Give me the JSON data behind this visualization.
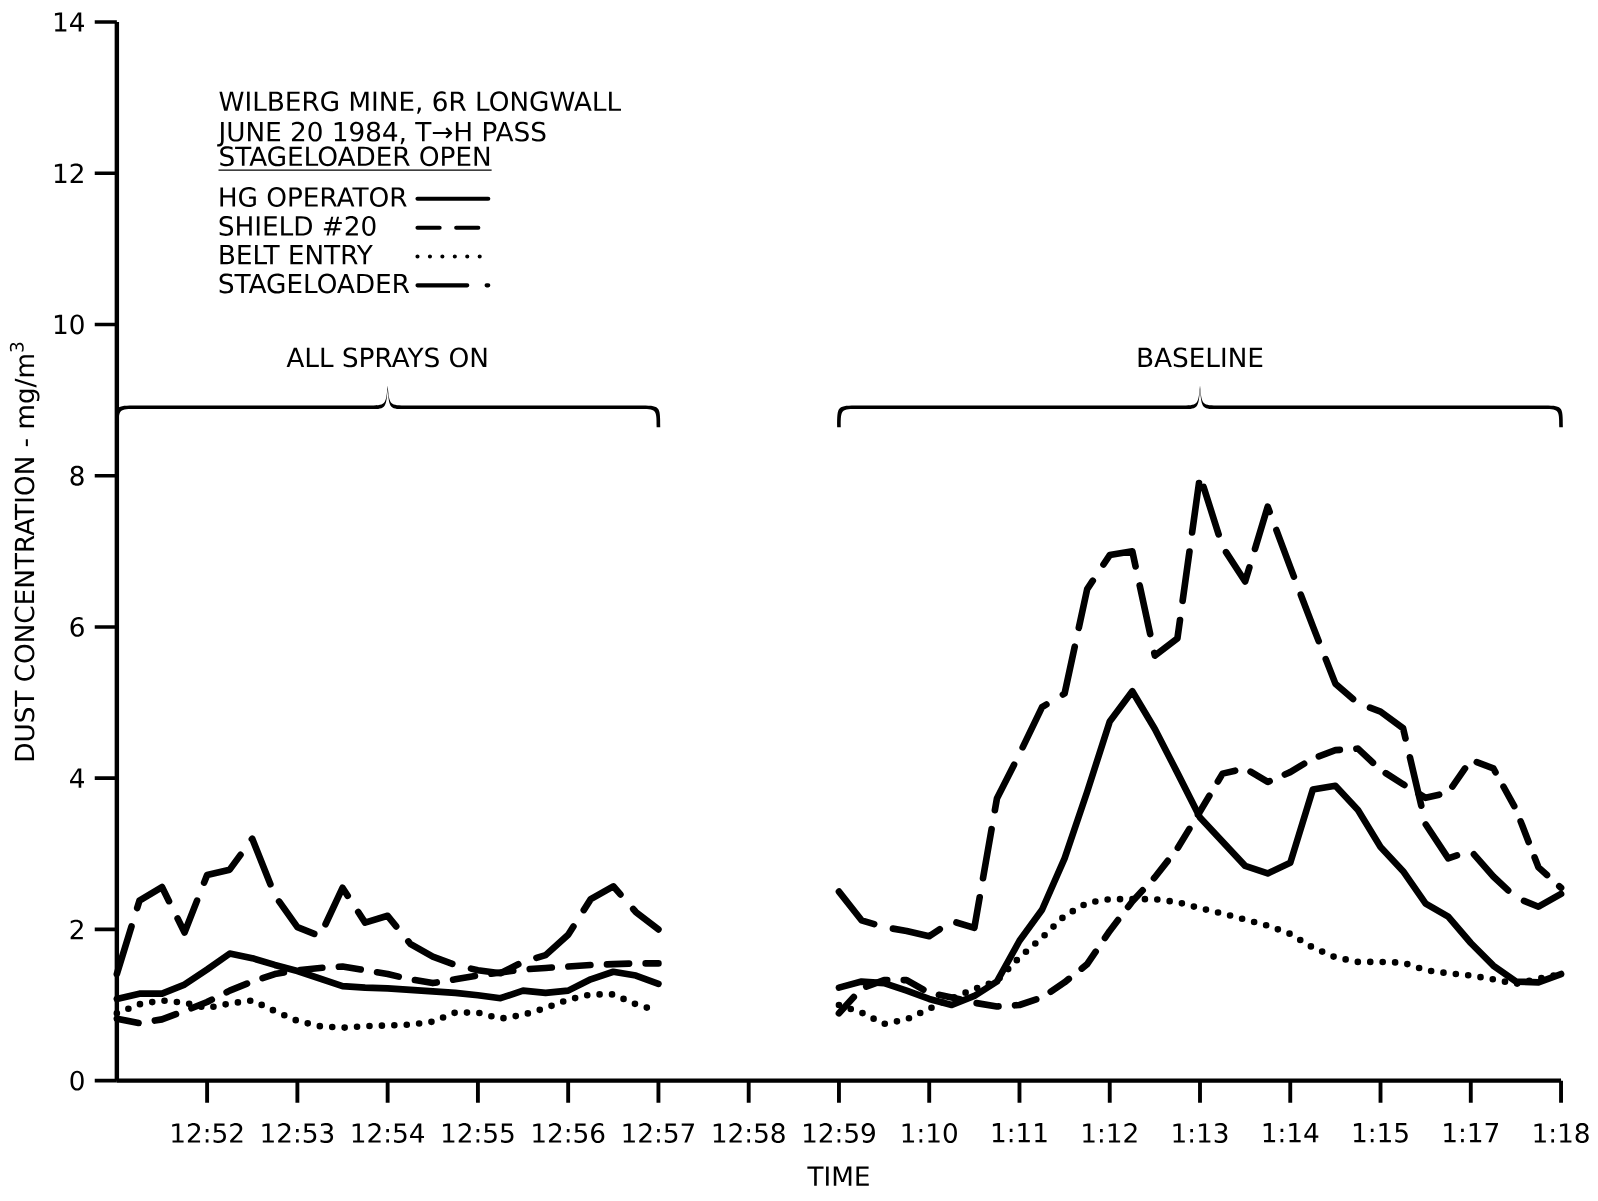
{
  "chart_data": {
    "type": "line",
    "title": "WILBERG MINE, 6R LONGWALL",
    "subtitle": "JUNE 20 1984, T→H PASS",
    "xlabel": "TIME",
    "ylabel": "DUST CONCENTRATION - mg/m$^{3}$",
    "legend_title": "STAGELOADER OPEN",
    "legend": "top left",
    "annotations": [
      "ALL SPRAYS ON",
      "BASELINE"
    ],
    "categories": [
      null,
      null,
      null,
      null,
      "12:52",
      null,
      null,
      null,
      "12:53",
      null,
      null,
      null,
      "12:54",
      null,
      null,
      null,
      "12:55",
      null,
      null,
      null,
      "12:56",
      null,
      null,
      null,
      "12:57",
      null,
      null,
      null,
      "12:58",
      null,
      null,
      null,
      "12:59",
      null,
      null,
      null,
      "1:10",
      null,
      null,
      null,
      "1:11",
      null,
      null,
      null,
      "1:12",
      null,
      null,
      null,
      "1:13",
      null,
      null,
      null,
      "1:14",
      null,
      null,
      null,
      "1:15",
      null,
      null,
      null,
      "1:17",
      null,
      null,
      null,
      "1:18"
    ],
    "ylim": [
      0,
      14
    ],
    "yticks": [
      0,
      2,
      4,
      6,
      8,
      10,
      12,
      14
    ],
    "series": [
      {
        "name": "HG OPERATOR",
        "color": "#000000",
        "line_style": "solid",
        "values": [
          1.08,
          1.15,
          1.15,
          1.27,
          1.47,
          1.68,
          1.62,
          1.53,
          1.45,
          1.35,
          1.25,
          1.23,
          1.22,
          1.2,
          1.18,
          1.16,
          1.13,
          1.09,
          1.19,
          1.16,
          1.19,
          1.34,
          1.44,
          1.39,
          1.28,
          null,
          null,
          null,
          null,
          null,
          null,
          null,
          1.23,
          1.31,
          1.29,
          1.19,
          1.08,
          1.0,
          1.12,
          1.31,
          1.85,
          2.26,
          2.94,
          3.82,
          4.75,
          5.15,
          4.65,
          4.07,
          3.48,
          3.16,
          2.84,
          2.74,
          2.88,
          3.85,
          3.9,
          3.58,
          3.09,
          2.77,
          2.34,
          2.17,
          1.82,
          1.52,
          1.31,
          1.3,
          1.41
        ]
      },
      {
        "name": "SHIELD #20",
        "color": "#000000",
        "line_style": "dashed",
        "values": [
          0.82,
          0.76,
          0.81,
          0.92,
          1.04,
          1.19,
          1.31,
          1.41,
          1.46,
          1.49,
          1.51,
          1.46,
          1.41,
          1.34,
          1.29,
          1.34,
          1.39,
          1.43,
          1.47,
          1.49,
          1.51,
          1.53,
          1.54,
          1.55,
          1.55,
          null,
          null,
          null,
          null,
          null,
          null,
          null,
          0.89,
          1.22,
          1.33,
          1.33,
          1.16,
          1.1,
          1.03,
          0.98,
          1.0,
          1.1,
          1.3,
          1.54,
          1.98,
          2.37,
          2.69,
          3.07,
          3.56,
          4.06,
          4.13,
          3.95,
          4.08,
          4.26,
          4.37,
          4.39,
          4.11,
          3.92,
          3.74,
          3.81,
          4.24,
          4.13,
          3.59,
          2.82,
          2.55
        ]
      },
      {
        "name": "BELT ENTRY",
        "color": "#000000",
        "line_style": "dotted",
        "values": [
          0.89,
          1.01,
          1.06,
          1.03,
          0.96,
          1.02,
          1.06,
          0.92,
          0.79,
          0.72,
          0.7,
          0.72,
          0.73,
          0.74,
          0.78,
          0.9,
          0.9,
          0.82,
          0.87,
          0.96,
          1.07,
          1.14,
          1.14,
          1.01,
          0.92,
          null,
          null,
          null,
          null,
          null,
          null,
          null,
          1.0,
          0.9,
          0.75,
          0.81,
          0.95,
          1.09,
          1.21,
          1.32,
          1.63,
          1.89,
          2.18,
          2.35,
          2.4,
          2.4,
          2.4,
          2.36,
          2.28,
          2.21,
          2.13,
          2.05,
          1.94,
          1.76,
          1.63,
          1.57,
          1.57,
          1.56,
          1.46,
          1.42,
          1.39,
          1.34,
          1.28,
          1.35,
          1.41
        ]
      },
      {
        "name": "STAGELOADER",
        "color": "#000000",
        "line_style": "dashed",
        "values": [
          1.41,
          2.38,
          2.56,
          1.96,
          2.72,
          2.79,
          3.2,
          2.45,
          2.03,
          1.91,
          2.55,
          2.09,
          2.18,
          1.81,
          1.64,
          1.53,
          1.46,
          1.42,
          1.57,
          1.66,
          1.93,
          2.4,
          2.57,
          2.23,
          2.0,
          null,
          null,
          null,
          null,
          null,
          null,
          null,
          2.5,
          2.12,
          2.03,
          1.98,
          1.91,
          2.11,
          2.02,
          3.73,
          4.32,
          4.94,
          5.12,
          6.5,
          6.95,
          7.0,
          5.62,
          5.85,
          8.0,
          7.06,
          6.6,
          7.59,
          6.79,
          6.01,
          5.25,
          4.99,
          4.88,
          4.66,
          3.39,
          2.94,
          3.04,
          2.7,
          2.42,
          2.3,
          2.47
        ]
      }
    ]
  }
}
